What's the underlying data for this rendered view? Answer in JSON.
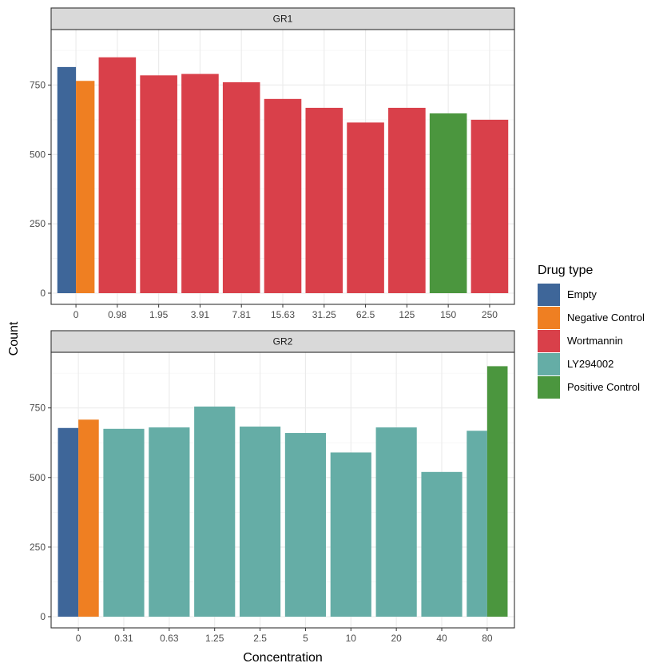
{
  "chart_data": {
    "type": "bar",
    "xlabel": "Concentration",
    "ylabel": "Count",
    "y_ticks": [
      0,
      250,
      500,
      750
    ],
    "grid": true,
    "legend": {
      "title": "Drug type",
      "placement": "right",
      "entries": [
        {
          "name": "Empty",
          "color": "#3E6699"
        },
        {
          "name": "Negative Control",
          "color": "#EF7F22"
        },
        {
          "name": "Wortmannin",
          "color": "#D9404A"
        },
        {
          "name": "LY294002",
          "color": "#65ADA6"
        },
        {
          "name": "Positive Control",
          "color": "#4B963E"
        }
      ]
    },
    "panels": [
      {
        "title": "GR1",
        "ylim": [
          0,
          950
        ],
        "categories": [
          "0",
          "0.98",
          "1.95",
          "3.91",
          "7.81",
          "15.63",
          "31.25",
          "62.5",
          "125",
          "150",
          "250"
        ],
        "bars": [
          {
            "category": "0",
            "drug": "Empty",
            "value": 815
          },
          {
            "category": "0",
            "drug": "Negative Control",
            "value": 765
          },
          {
            "category": "0.98",
            "drug": "Wortmannin",
            "value": 850
          },
          {
            "category": "1.95",
            "drug": "Wortmannin",
            "value": 785
          },
          {
            "category": "3.91",
            "drug": "Wortmannin",
            "value": 790
          },
          {
            "category": "7.81",
            "drug": "Wortmannin",
            "value": 760
          },
          {
            "category": "15.63",
            "drug": "Wortmannin",
            "value": 700
          },
          {
            "category": "31.25",
            "drug": "Wortmannin",
            "value": 668
          },
          {
            "category": "62.5",
            "drug": "Wortmannin",
            "value": 615
          },
          {
            "category": "125",
            "drug": "Wortmannin",
            "value": 668
          },
          {
            "category": "150",
            "drug": "Positive Control",
            "value": 648
          },
          {
            "category": "250",
            "drug": "Wortmannin",
            "value": 625
          }
        ]
      },
      {
        "title": "GR2",
        "ylim": [
          0,
          950
        ],
        "categories": [
          "0",
          "0.31",
          "0.63",
          "1.25",
          "2.5",
          "5",
          "10",
          "20",
          "40",
          "80"
        ],
        "bars": [
          {
            "category": "0",
            "drug": "Empty",
            "value": 678
          },
          {
            "category": "0",
            "drug": "Negative Control",
            "value": 708
          },
          {
            "category": "0.31",
            "drug": "LY294002",
            "value": 675
          },
          {
            "category": "0.63",
            "drug": "LY294002",
            "value": 680
          },
          {
            "category": "1.25",
            "drug": "LY294002",
            "value": 755
          },
          {
            "category": "2.5",
            "drug": "LY294002",
            "value": 683
          },
          {
            "category": "5",
            "drug": "LY294002",
            "value": 660
          },
          {
            "category": "10",
            "drug": "LY294002",
            "value": 590
          },
          {
            "category": "20",
            "drug": "LY294002",
            "value": 680
          },
          {
            "category": "40",
            "drug": "LY294002",
            "value": 520
          },
          {
            "category": "80",
            "drug": "LY294002",
            "value": 668
          },
          {
            "category": "80",
            "drug": "Positive Control",
            "value": 900
          }
        ]
      }
    ]
  }
}
